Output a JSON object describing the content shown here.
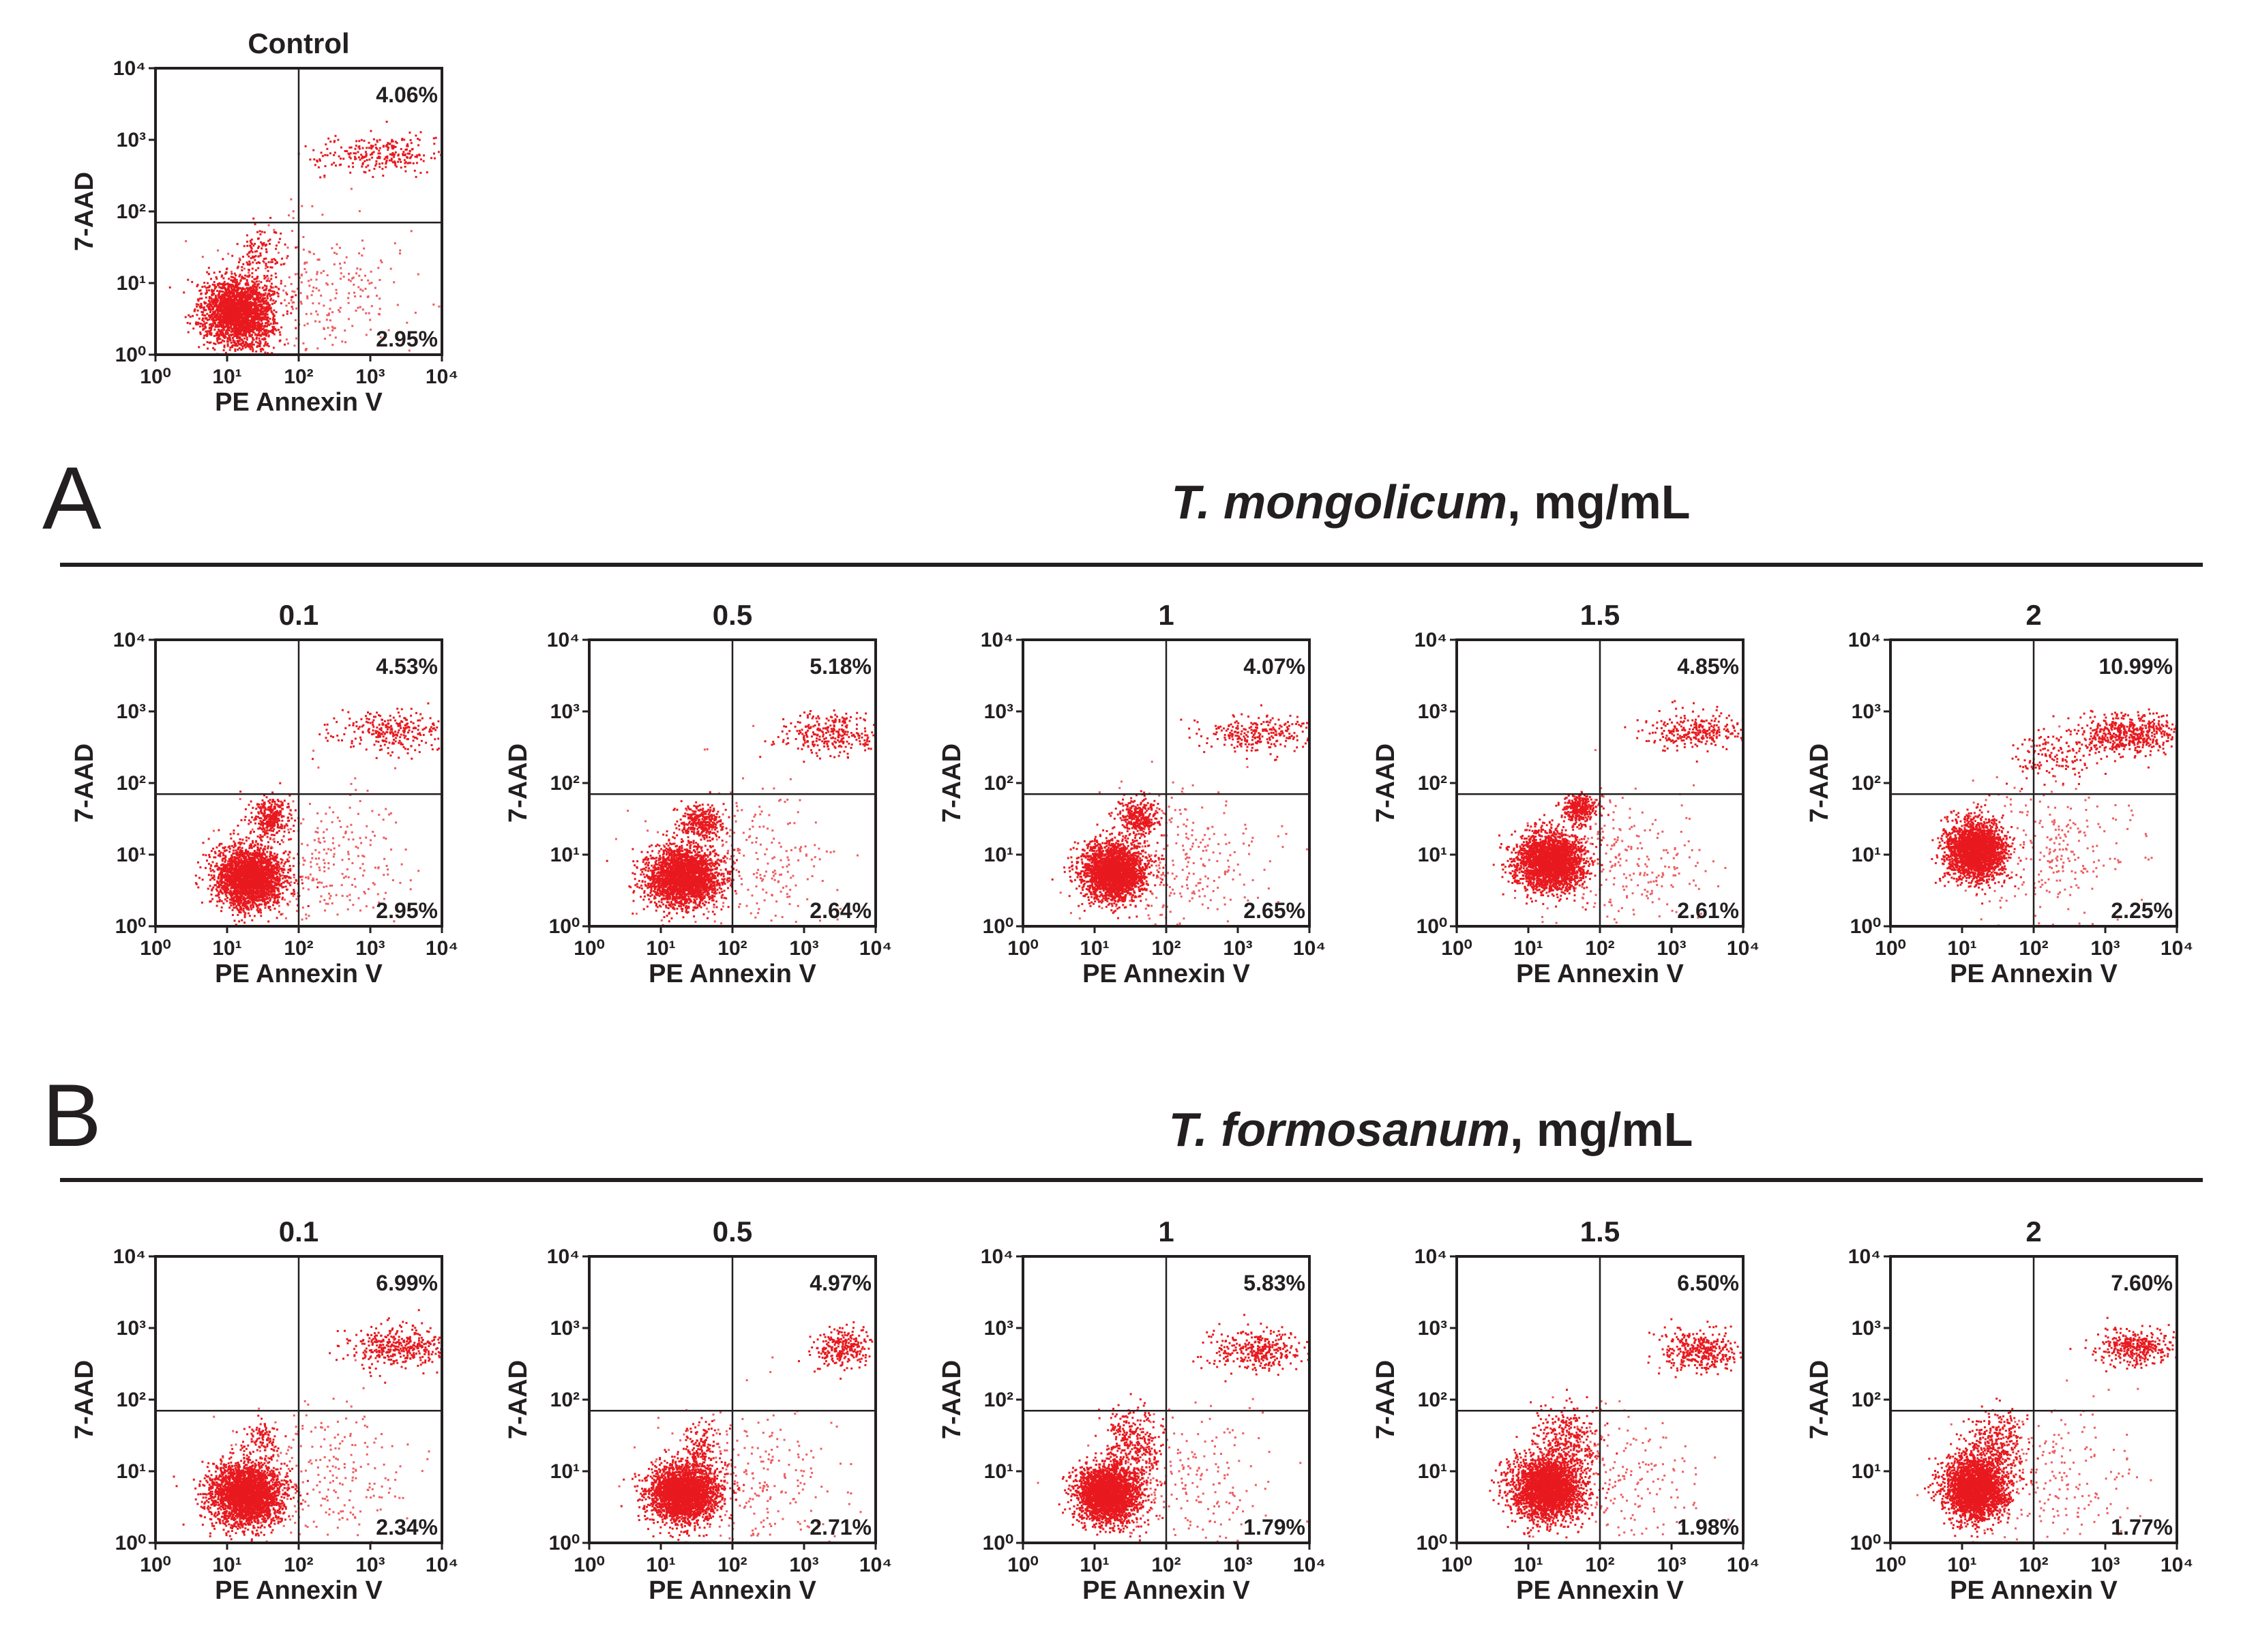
{
  "colors": {
    "dots": "#e8191f",
    "text": "#231f20",
    "axis": "#231f20"
  },
  "section_a": {
    "letter": "A",
    "species": "T. mongolicum",
    "unit": ", mg/mL"
  },
  "section_b": {
    "letter": "B",
    "species": "T. formosanum",
    "unit": ", mg/mL"
  },
  "chart_data": [
    {
      "type": "scatter",
      "group": "control",
      "title": "Control",
      "xlabel": "PE Annexin V",
      "ylabel": "7-AAD",
      "x_scale": "log",
      "y_scale": "log",
      "xlim": [
        1,
        10000
      ],
      "ylim": [
        1,
        10000
      ],
      "x_ticks": [
        1,
        10,
        100,
        1000,
        10000
      ],
      "y_ticks": [
        1,
        10,
        100,
        1000,
        10000
      ],
      "x_gate": 100,
      "y_gate": 70,
      "quadrant_percentages": {
        "upper_right": "4.06%",
        "lower_right": "2.95%"
      },
      "populations": [
        {
          "name": "",
          "center": [
            14,
            4
          ],
          "spread": [
            0.24,
            0.24
          ],
          "n": 2400,
          "alpha": 1.0
        },
        {
          "name": "",
          "center": [
            30,
            28
          ],
          "spread": [
            0.16,
            0.18
          ],
          "n": 110,
          "alpha": 1.0
        },
        {
          "name": "",
          "center": [
            1200,
            650
          ],
          "spread": [
            0.45,
            0.12
          ],
          "n": 260,
          "alpha": 1.0
        },
        {
          "name": "",
          "center": [
            180,
            8
          ],
          "spread": [
            0.6,
            0.5
          ],
          "n": 260,
          "alpha": 0.7
        }
      ]
    },
    {
      "type": "scatter",
      "group": "A",
      "title": "0.1",
      "xlabel": "PE Annexin V",
      "ylabel": "7-AAD",
      "x_scale": "log",
      "y_scale": "log",
      "xlim": [
        1,
        10000
      ],
      "ylim": [
        1,
        10000
      ],
      "x_ticks": [
        1,
        10,
        100,
        1000,
        10000
      ],
      "y_ticks": [
        1,
        10,
        100,
        1000,
        10000
      ],
      "x_gate": 100,
      "y_gate": 70,
      "quadrant_percentages": {
        "upper_right": "4.53%",
        "lower_right": "2.95%"
      },
      "populations": [
        {
          "name": "",
          "center": [
            20,
            5
          ],
          "spread": [
            0.24,
            0.22
          ],
          "n": 2400,
          "alpha": 1.0
        },
        {
          "name": "",
          "center": [
            40,
            35
          ],
          "spread": [
            0.14,
            0.13
          ],
          "n": 300,
          "alpha": 1.0
        },
        {
          "name": "",
          "center": [
            2000,
            550
          ],
          "spread": [
            0.42,
            0.15
          ],
          "n": 280,
          "alpha": 1.0
        },
        {
          "name": "",
          "center": [
            180,
            8
          ],
          "spread": [
            0.6,
            0.5
          ],
          "n": 260,
          "alpha": 0.7
        }
      ]
    },
    {
      "type": "scatter",
      "group": "A",
      "title": "0.5",
      "xlabel": "PE Annexin V",
      "ylabel": "7-AAD",
      "x_scale": "log",
      "y_scale": "log",
      "xlim": [
        1,
        10000
      ],
      "ylim": [
        1,
        10000
      ],
      "x_ticks": [
        1,
        10,
        100,
        1000,
        10000
      ],
      "y_ticks": [
        1,
        10,
        100,
        1000,
        10000
      ],
      "x_gate": 100,
      "y_gate": 70,
      "quadrant_percentages": {
        "upper_right": "5.18%",
        "lower_right": "2.64%"
      },
      "populations": [
        {
          "name": "",
          "center": [
            20,
            5
          ],
          "spread": [
            0.25,
            0.2
          ],
          "n": 2400,
          "alpha": 1.0
        },
        {
          "name": "",
          "center": [
            35,
            30
          ],
          "spread": [
            0.15,
            0.12
          ],
          "n": 320,
          "alpha": 1.0
        },
        {
          "name": "",
          "center": [
            2200,
            500
          ],
          "spread": [
            0.4,
            0.14
          ],
          "n": 300,
          "alpha": 1.0
        },
        {
          "name": "",
          "center": [
            180,
            8
          ],
          "spread": [
            0.6,
            0.5
          ],
          "n": 260,
          "alpha": 0.7
        }
      ]
    },
    {
      "type": "scatter",
      "group": "A",
      "title": "1",
      "xlabel": "PE Annexin V",
      "ylabel": "7-AAD",
      "x_scale": "log",
      "y_scale": "log",
      "xlim": [
        1,
        10000
      ],
      "ylim": [
        1,
        10000
      ],
      "x_ticks": [
        1,
        10,
        100,
        1000,
        10000
      ],
      "y_ticks": [
        1,
        10,
        100,
        1000,
        10000
      ],
      "x_gate": 100,
      "y_gate": 70,
      "quadrant_percentages": {
        "upper_right": "4.07%",
        "lower_right": "2.65%"
      },
      "populations": [
        {
          "name": "",
          "center": [
            18,
            6
          ],
          "spread": [
            0.22,
            0.2
          ],
          "n": 2400,
          "alpha": 1.0
        },
        {
          "name": "",
          "center": [
            40,
            35
          ],
          "spread": [
            0.13,
            0.13
          ],
          "n": 320,
          "alpha": 1.0
        },
        {
          "name": "",
          "center": [
            2000,
            500
          ],
          "spread": [
            0.38,
            0.13
          ],
          "n": 260,
          "alpha": 1.0
        },
        {
          "name": "",
          "center": [
            180,
            8
          ],
          "spread": [
            0.6,
            0.5
          ],
          "n": 260,
          "alpha": 0.7
        }
      ]
    },
    {
      "type": "scatter",
      "group": "A",
      "title": "1.5",
      "xlabel": "PE Annexin V",
      "ylabel": "7-AAD",
      "x_scale": "log",
      "y_scale": "log",
      "xlim": [
        1,
        10000
      ],
      "ylim": [
        1,
        10000
      ],
      "x_ticks": [
        1,
        10,
        100,
        1000,
        10000
      ],
      "y_ticks": [
        1,
        10,
        100,
        1000,
        10000
      ],
      "x_gate": 100,
      "y_gate": 70,
      "quadrant_percentages": {
        "upper_right": "4.85%",
        "lower_right": "2.61%"
      },
      "populations": [
        {
          "name": "",
          "center": [
            20,
            8
          ],
          "spread": [
            0.24,
            0.2
          ],
          "n": 2400,
          "alpha": 1.0
        },
        {
          "name": "",
          "center": [
            50,
            45
          ],
          "spread": [
            0.12,
            0.1
          ],
          "n": 320,
          "alpha": 1.0
        },
        {
          "name": "",
          "center": [
            2200,
            550
          ],
          "spread": [
            0.38,
            0.13
          ],
          "n": 280,
          "alpha": 1.0
        },
        {
          "name": "",
          "center": [
            180,
            8
          ],
          "spread": [
            0.6,
            0.5
          ],
          "n": 260,
          "alpha": 0.7
        }
      ]
    },
    {
      "type": "scatter",
      "group": "A",
      "title": "2",
      "xlabel": "PE Annexin V",
      "ylabel": "7-AAD",
      "x_scale": "log",
      "y_scale": "log",
      "xlim": [
        1,
        10000
      ],
      "ylim": [
        1,
        10000
      ],
      "x_ticks": [
        1,
        10,
        100,
        1000,
        10000
      ],
      "y_ticks": [
        1,
        10,
        100,
        1000,
        10000
      ],
      "x_gate": 100,
      "y_gate": 70,
      "quadrant_percentages": {
        "upper_right": "10.99%",
        "lower_right": "2.25%"
      },
      "populations": [
        {
          "name": "",
          "center": [
            15,
            12
          ],
          "spread": [
            0.2,
            0.2
          ],
          "n": 2400,
          "alpha": 1.0
        },
        {
          "name": "",
          "center": [
            2000,
            500
          ],
          "spread": [
            0.35,
            0.14
          ],
          "n": 520,
          "alpha": 1.0
        },
        {
          "name": "",
          "center": [
            200,
            250
          ],
          "spread": [
            0.3,
            0.2
          ],
          "n": 150,
          "alpha": 1.0
        },
        {
          "name": "",
          "center": [
            180,
            10
          ],
          "spread": [
            0.6,
            0.5
          ],
          "n": 260,
          "alpha": 0.7
        }
      ]
    },
    {
      "type": "scatter",
      "group": "B",
      "title": "0.1",
      "xlabel": "PE Annexin V",
      "ylabel": "7-AAD",
      "x_scale": "log",
      "y_scale": "log",
      "xlim": [
        1,
        10000
      ],
      "ylim": [
        1,
        10000
      ],
      "x_ticks": [
        1,
        10,
        100,
        1000,
        10000
      ],
      "y_ticks": [
        1,
        10,
        100,
        1000,
        10000
      ],
      "x_gate": 100,
      "y_gate": 70,
      "quadrant_percentages": {
        "upper_right": "6.99%",
        "lower_right": "2.34%"
      },
      "populations": [
        {
          "name": "",
          "center": [
            18,
            5
          ],
          "spread": [
            0.25,
            0.22
          ],
          "n": 2600,
          "alpha": 1.0
        },
        {
          "name": "",
          "center": [
            30,
            28
          ],
          "spread": [
            0.12,
            0.12
          ],
          "n": 90,
          "alpha": 1.0
        },
        {
          "name": "",
          "center": [
            2500,
            550
          ],
          "spread": [
            0.36,
            0.14
          ],
          "n": 380,
          "alpha": 1.0
        },
        {
          "name": "",
          "center": [
            180,
            8
          ],
          "spread": [
            0.6,
            0.5
          ],
          "n": 260,
          "alpha": 0.7
        }
      ]
    },
    {
      "type": "scatter",
      "group": "B",
      "title": "0.5",
      "xlabel": "PE Annexin V",
      "ylabel": "7-AAD",
      "x_scale": "log",
      "y_scale": "log",
      "xlim": [
        1,
        10000
      ],
      "ylim": [
        1,
        10000
      ],
      "x_ticks": [
        1,
        10,
        100,
        1000,
        10000
      ],
      "y_ticks": [
        1,
        10,
        100,
        1000,
        10000
      ],
      "x_gate": 100,
      "y_gate": 70,
      "quadrant_percentages": {
        "upper_right": "4.97%",
        "lower_right": "2.71%"
      },
      "populations": [
        {
          "name": "",
          "center": [
            20,
            5
          ],
          "spread": [
            0.24,
            0.2
          ],
          "n": 2600,
          "alpha": 1.0
        },
        {
          "name": "",
          "center": [
            35,
            20
          ],
          "spread": [
            0.14,
            0.2
          ],
          "n": 160,
          "alpha": 1.0
        },
        {
          "name": "",
          "center": [
            3500,
            550
          ],
          "spread": [
            0.2,
            0.14
          ],
          "n": 260,
          "alpha": 1.0
        },
        {
          "name": "",
          "center": [
            180,
            8
          ],
          "spread": [
            0.6,
            0.5
          ],
          "n": 260,
          "alpha": 0.7
        }
      ]
    },
    {
      "type": "scatter",
      "group": "B",
      "title": "1",
      "xlabel": "PE Annexin V",
      "ylabel": "7-AAD",
      "x_scale": "log",
      "y_scale": "log",
      "xlim": [
        1,
        10000
      ],
      "ylim": [
        1,
        10000
      ],
      "x_ticks": [
        1,
        10,
        100,
        1000,
        10000
      ],
      "y_ticks": [
        1,
        10,
        100,
        1000,
        10000
      ],
      "x_gate": 100,
      "y_gate": 70,
      "quadrant_percentages": {
        "upper_right": "5.83%",
        "lower_right": "1.79%"
      },
      "populations": [
        {
          "name": "",
          "center": [
            15,
            5
          ],
          "spread": [
            0.22,
            0.2
          ],
          "n": 2600,
          "alpha": 1.0
        },
        {
          "name": "",
          "center": [
            35,
            25
          ],
          "spread": [
            0.2,
            0.25
          ],
          "n": 320,
          "alpha": 1.0
        },
        {
          "name": "",
          "center": [
            1800,
            500
          ],
          "spread": [
            0.32,
            0.14
          ],
          "n": 330,
          "alpha": 1.0
        },
        {
          "name": "",
          "center": [
            180,
            8
          ],
          "spread": [
            0.6,
            0.5
          ],
          "n": 220,
          "alpha": 0.7
        }
      ]
    },
    {
      "type": "scatter",
      "group": "B",
      "title": "1.5",
      "xlabel": "PE Annexin V",
      "ylabel": "7-AAD",
      "x_scale": "log",
      "y_scale": "log",
      "xlim": [
        1,
        10000
      ],
      "ylim": [
        1,
        10000
      ],
      "x_ticks": [
        1,
        10,
        100,
        1000,
        10000
      ],
      "y_ticks": [
        1,
        10,
        100,
        1000,
        10000
      ],
      "x_gate": 100,
      "y_gate": 70,
      "quadrant_percentages": {
        "upper_right": "6.50%",
        "lower_right": "1.98%"
      },
      "populations": [
        {
          "name": "",
          "center": [
            18,
            6
          ],
          "spread": [
            0.24,
            0.22
          ],
          "n": 2600,
          "alpha": 1.0
        },
        {
          "name": "",
          "center": [
            35,
            28
          ],
          "spread": [
            0.22,
            0.25
          ],
          "n": 300,
          "alpha": 1.0
        },
        {
          "name": "",
          "center": [
            2500,
            500
          ],
          "spread": [
            0.28,
            0.14
          ],
          "n": 360,
          "alpha": 1.0
        },
        {
          "name": "",
          "center": [
            180,
            8
          ],
          "spread": [
            0.6,
            0.5
          ],
          "n": 220,
          "alpha": 0.7
        }
      ]
    },
    {
      "type": "scatter",
      "group": "B",
      "title": "2",
      "xlabel": "PE Annexin V",
      "ylabel": "7-AAD",
      "x_scale": "log",
      "y_scale": "log",
      "xlim": [
        1,
        10000
      ],
      "ylim": [
        1,
        10000
      ],
      "x_ticks": [
        1,
        10,
        100,
        1000,
        10000
      ],
      "y_ticks": [
        1,
        10,
        100,
        1000,
        10000
      ],
      "x_gate": 100,
      "y_gate": 70,
      "quadrant_percentages": {
        "upper_right": "7.60%",
        "lower_right": "1.77%"
      },
      "populations": [
        {
          "name": "",
          "center": [
            15,
            6
          ],
          "spread": [
            0.22,
            0.22
          ],
          "n": 2600,
          "alpha": 1.0
        },
        {
          "name": "",
          "center": [
            30,
            25
          ],
          "spread": [
            0.2,
            0.25
          ],
          "n": 300,
          "alpha": 1.0
        },
        {
          "name": "",
          "center": [
            2500,
            550
          ],
          "spread": [
            0.28,
            0.13
          ],
          "n": 360,
          "alpha": 1.0
        },
        {
          "name": "",
          "center": [
            180,
            8
          ],
          "spread": [
            0.6,
            0.5
          ],
          "n": 220,
          "alpha": 0.7
        }
      ]
    }
  ]
}
